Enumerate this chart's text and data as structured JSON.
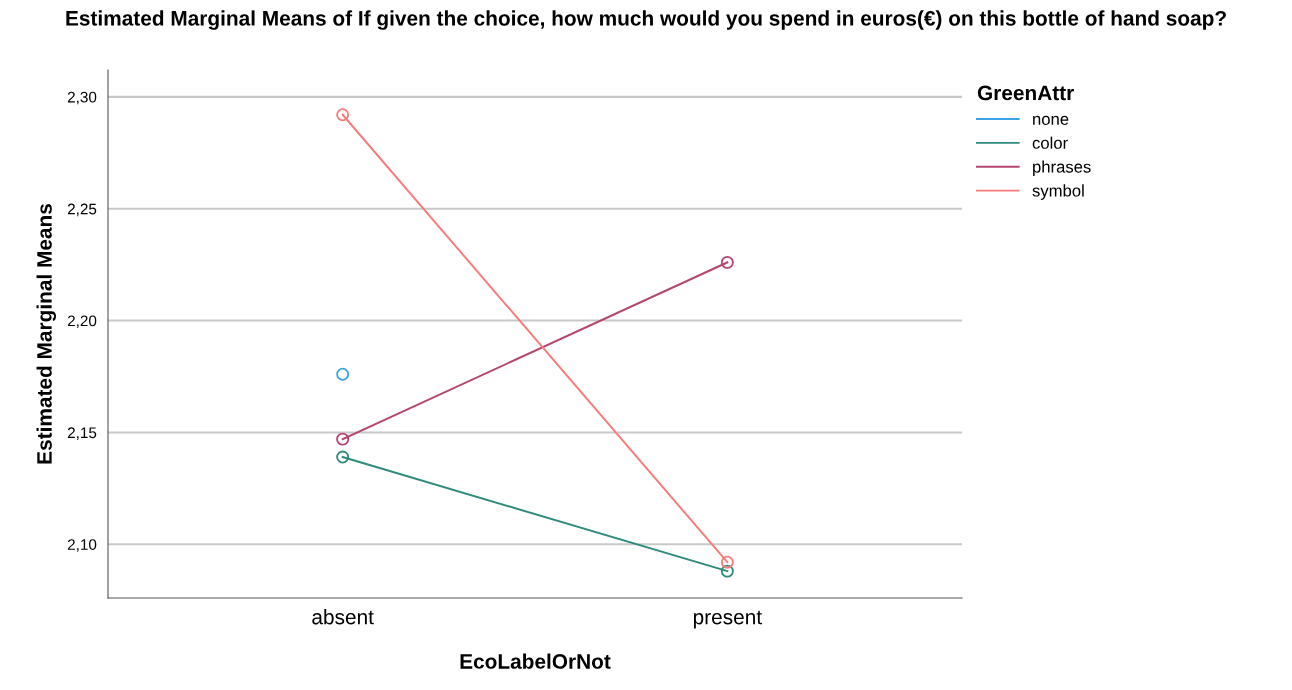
{
  "chart_data": {
    "type": "line",
    "title": "Estimated Marginal Means of If given the choice, how much would you spend in euros(€) on this bottle of hand soap?",
    "xlabel": "EcoLabelOrNot",
    "ylabel": "Estimated Marginal Means",
    "legend_title": "GreenAttr",
    "categories": [
      "absent",
      "present"
    ],
    "series": [
      {
        "name": "none",
        "color": "#3ba3e6",
        "values": [
          2.176,
          null
        ]
      },
      {
        "name": "color",
        "color": "#2e8a7c",
        "values": [
          2.139,
          2.088
        ]
      },
      {
        "name": "phrases",
        "color": "#b4456f",
        "values": [
          2.147,
          2.226
        ]
      },
      {
        "name": "symbol",
        "color": "#f77b7b",
        "values": [
          2.292,
          2.092
        ]
      }
    ],
    "ylim": [
      2.076,
      2.312
    ],
    "yticks": [
      {
        "value": 2.1,
        "label": "2,10"
      },
      {
        "value": 2.15,
        "label": "2,15"
      },
      {
        "value": 2.2,
        "label": "2,20"
      },
      {
        "value": 2.25,
        "label": "2,25"
      },
      {
        "value": 2.3,
        "label": "2,30"
      }
    ],
    "grid": "y",
    "legend": "top right",
    "marker": "circle",
    "line_style": "solid"
  }
}
